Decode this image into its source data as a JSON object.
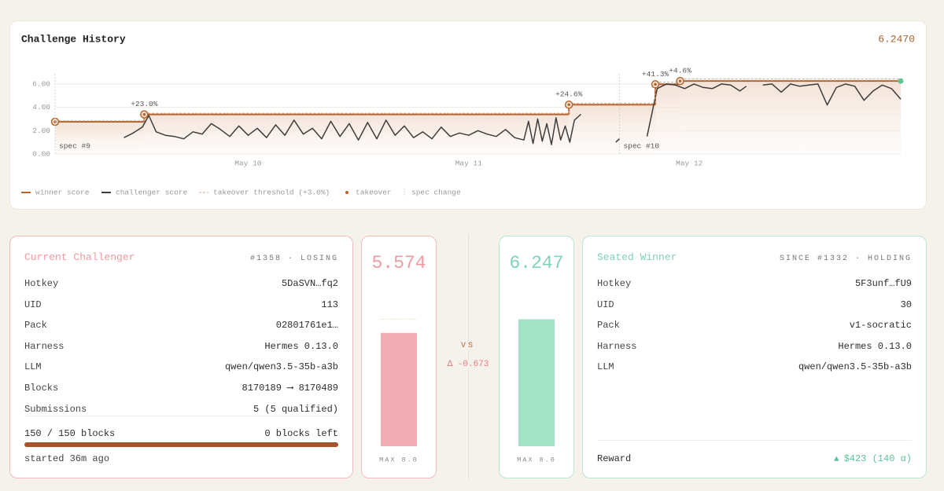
{
  "chart_data": [
    {
      "type": "line",
      "title": "Challenge History",
      "header_value": "6.2470",
      "xlim": [
        0,
        92
      ],
      "xticks": [
        {
          "value": 21,
          "label": "May 10"
        },
        {
          "value": 45,
          "label": "May 11"
        },
        {
          "value": 69,
          "label": "May 12"
        }
      ],
      "ylim": [
        0,
        7
      ],
      "yticks": [
        {
          "value": 0,
          "label": "0.00"
        },
        {
          "value": 2,
          "label": "2.00"
        },
        {
          "value": 4,
          "label": "4.00"
        },
        {
          "value": 6,
          "label": "6.00"
        }
      ],
      "grid": true,
      "series": [
        {
          "name": "winner score",
          "style": "step",
          "fill": true,
          "color": "#b5652f",
          "current_color": "#5fc393",
          "x": [
            0,
            9.7,
            55.9,
            65.3,
            68.0
          ],
          "values": [
            2.76,
            3.39,
            4.225,
            5.97,
            6.247
          ]
        },
        {
          "name": "challenger score",
          "style": "line",
          "color": "#3d3d3d",
          "x": [
            7.5,
            8.5,
            9.5,
            10.2,
            11,
            12,
            13,
            14,
            15,
            16,
            17,
            18,
            19,
            20,
            21,
            22,
            23,
            24,
            25,
            26,
            27,
            28,
            29,
            30,
            31,
            32,
            33,
            34,
            35,
            36,
            37,
            38,
            39,
            40,
            41,
            42,
            43,
            44,
            45,
            46,
            47,
            48,
            49,
            50,
            51,
            51.5,
            52,
            52.5,
            53,
            53.5,
            54,
            54.5,
            55,
            55.5,
            56,
            56.5,
            57.2,
            59,
            61.0,
            61.4,
            62.9,
            64.4,
            65.5,
            66.5,
            67.5,
            68.5,
            69.5,
            70.5,
            71.5,
            72.5,
            73.5,
            74.5,
            75.2,
            76.1,
            77,
            78,
            79,
            80,
            81,
            82,
            83,
            84,
            85,
            86,
            87,
            88,
            89,
            90,
            91,
            92
          ],
          "values": [
            1.4,
            1.8,
            2.3,
            3.3,
            1.9,
            1.6,
            1.5,
            1.3,
            1.9,
            1.7,
            2.6,
            2.1,
            1.5,
            2.4,
            1.6,
            2.2,
            1.4,
            2.5,
            1.6,
            2.9,
            1.7,
            2.2,
            1.3,
            2.8,
            1.5,
            2.6,
            1.2,
            2.7,
            1.3,
            2.9,
            1.6,
            2.4,
            1.4,
            1.9,
            1.3,
            2.3,
            1.5,
            1.8,
            1.6,
            2.0,
            1.7,
            1.5,
            2.1,
            1.4,
            1.2,
            2.8,
            0.9,
            3.0,
            1.1,
            2.6,
            0.8,
            3.1,
            1.2,
            2.4,
            1.0,
            2.9,
            3.4,
            null,
            1.0,
            1.3,
            null,
            1.5,
            5.6,
            6.0,
            5.9,
            5.6,
            6.0,
            5.7,
            5.6,
            6.0,
            5.9,
            5.4,
            5.8,
            null,
            5.9,
            6.0,
            5.3,
            6.0,
            5.8,
            5.9,
            6.0,
            4.2,
            5.7,
            6.0,
            5.8,
            4.6,
            5.4,
            5.9,
            5.6,
            4.7
          ]
        },
        {
          "name": "takeover threshold (+3.0%)",
          "style": "step",
          "dash": true,
          "color": "#d3ad93",
          "x": [
            0,
            9.7,
            55.9,
            65.3,
            68.0
          ],
          "values": [
            2.84,
            3.49,
            4.35,
            6.15,
            6.43
          ]
        },
        {
          "name": "takeover",
          "style": "marker",
          "color": "#b5652f",
          "x": [
            0,
            9.7,
            55.9,
            65.3,
            68.0
          ],
          "values": [
            2.76,
            3.39,
            4.225,
            5.97,
            6.247
          ],
          "annotations": [
            null,
            "+23.0%",
            "+24.6%",
            "+41.3%",
            "+4.6%"
          ]
        },
        {
          "name": "spec change",
          "style": "vline",
          "color": "#c8c8c8",
          "x": [
            0,
            61.4
          ],
          "annotations": [
            "spec #9",
            "spec #10"
          ]
        }
      ]
    },
    {
      "type": "bar",
      "values": [
        5.574
      ],
      "ylim": [
        0,
        8.0
      ],
      "caption": "MAX 8.0",
      "color": "#f1adb5",
      "text_color": "#ef9aa1",
      "reference": 6.247
    },
    {
      "type": "bar",
      "values": [
        6.247
      ],
      "ylim": [
        0,
        8.0
      ],
      "caption": "MAX 8.0",
      "color": "#a2e3c8",
      "text_color": "#7fd4b4"
    }
  ],
  "challenger": {
    "title": "Current Challenger",
    "status": "#1358 · LOSING",
    "rows": [
      [
        "Hotkey",
        "5DaSVN…fq2"
      ],
      [
        "UID",
        "113"
      ],
      [
        "Pack",
        "02801761e1…"
      ],
      [
        "Harness",
        "Hermes 0.13.0"
      ],
      [
        "LLM",
        "qwen/qwen3.5-35b-a3b"
      ],
      [
        "Blocks",
        "8170189 ⟶ 8170489"
      ],
      [
        "Submissions",
        "5 (5 qualified)"
      ]
    ],
    "progress": {
      "label": "150 / 150 blocks",
      "remaining": "0 blocks left",
      "done": 150,
      "total": 150
    },
    "footer": "started 36m ago"
  },
  "versus": {
    "label": "VS",
    "delta": "Δ -0.673"
  },
  "winner": {
    "title": "Seated Winner",
    "status": "SINCE #1332 · HOLDING",
    "rows": [
      [
        "Hotkey",
        "5F3unf…fU9"
      ],
      [
        "UID",
        "30"
      ],
      [
        "Pack",
        "v1-socratic"
      ],
      [
        "Harness",
        "Hermes 0.13.0"
      ],
      [
        "LLM",
        "qwen/qwen3.5-35b-a3b"
      ]
    ],
    "reward_label": "Reward",
    "reward": "$423 (140 α)"
  }
}
